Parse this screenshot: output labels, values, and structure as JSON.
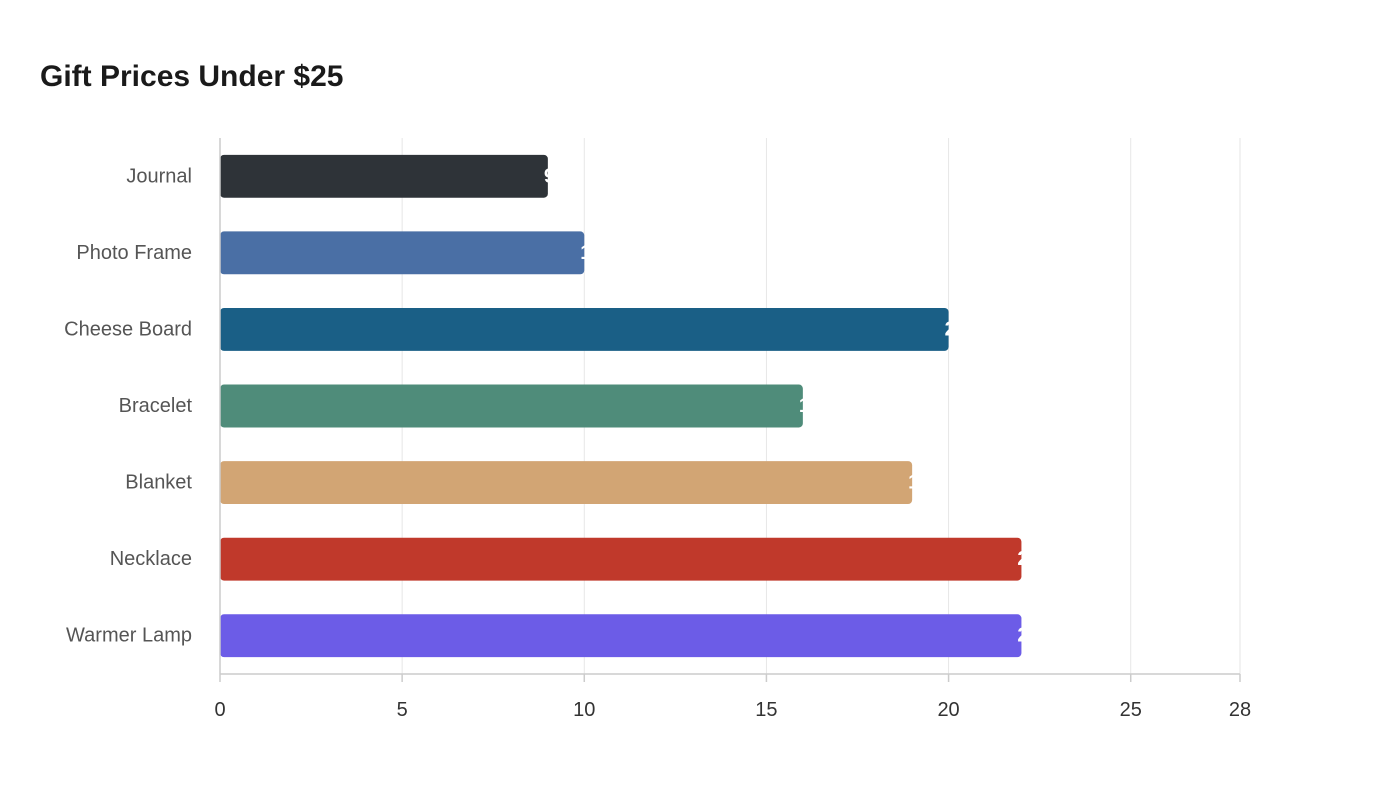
{
  "chart_data": {
    "type": "bar",
    "orientation": "horizontal",
    "title": "Gift Prices Under $25",
    "xlabel": "",
    "ylabel": "",
    "categories": [
      "Journal",
      "Photo Frame",
      "Cheese Board",
      "Bracelet",
      "Blanket",
      "Necklace",
      "Warmer Lamp"
    ],
    "values": [
      9,
      10,
      20,
      16,
      19,
      22,
      22
    ],
    "colors": [
      "#2e3338",
      "#4a6fa5",
      "#1a5f86",
      "#4f8c7a",
      "#d2a574",
      "#c0392b",
      "#6c5ce7"
    ],
    "xlim": [
      0,
      28
    ],
    "xticks": [
      0,
      5,
      10,
      15,
      20,
      25,
      28
    ],
    "grid": "vertical",
    "legend": "none",
    "data_labels": true
  }
}
